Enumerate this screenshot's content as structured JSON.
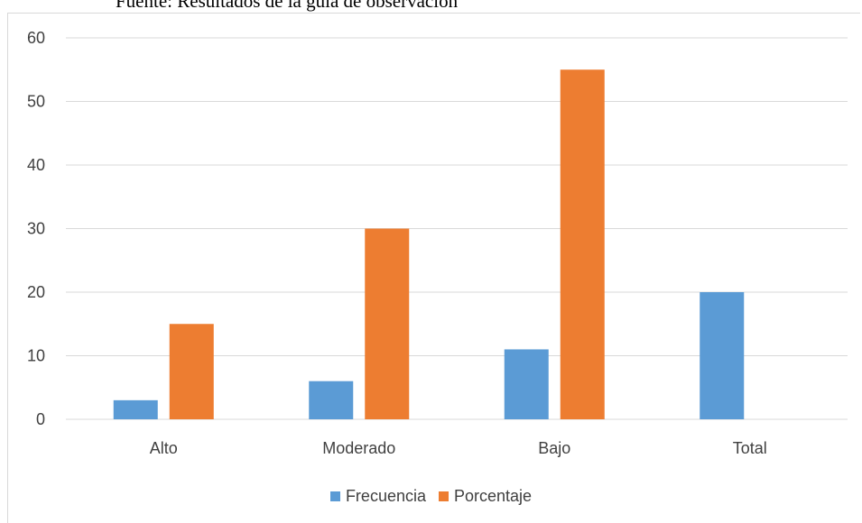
{
  "source_note": "Fuente: Resultados de la guía de observación",
  "colors": {
    "frecuencia": "#5b9bd5",
    "porcentaje": "#ed7d31",
    "grid": "#d9d9d9",
    "axis_text": "#404040"
  },
  "chart_data": {
    "type": "bar",
    "categories": [
      "Alto",
      "Moderado",
      "Bajo",
      "Total"
    ],
    "series": [
      {
        "name": "Frecuencia",
        "values": [
          3,
          6,
          11,
          20
        ],
        "color": "#5b9bd5"
      },
      {
        "name": "Porcentaje",
        "values": [
          15,
          30,
          55,
          null
        ],
        "color": "#ed7d31"
      }
    ],
    "title": "",
    "xlabel": "",
    "ylabel": "",
    "ylim": [
      0,
      60
    ],
    "yticks": [
      0,
      10,
      20,
      30,
      40,
      50,
      60
    ],
    "grid": true,
    "legend_position": "bottom"
  }
}
